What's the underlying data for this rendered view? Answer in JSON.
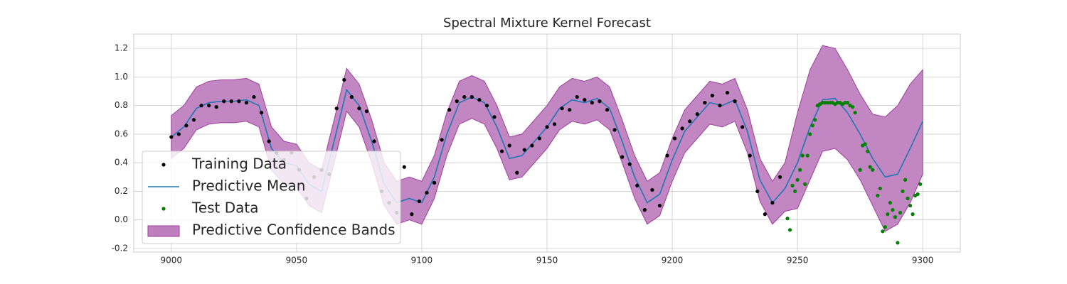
{
  "chart_data": {
    "type": "scatter_line_band",
    "title": "Spectral Mixture Kernel Forecast",
    "xlim": [
      8985,
      9315
    ],
    "ylim": [
      -0.225,
      1.3
    ],
    "xticks": [
      9000,
      9050,
      9100,
      9150,
      9200,
      9250,
      9300
    ],
    "yticks": [
      -0.2,
      {
        "value": 0,
        "label": "0.0"
      },
      0.2,
      0.4,
      0.6,
      0.8,
      {
        "value": 1,
        "label": "1.0"
      },
      1.2
    ],
    "grid": true,
    "legend": "lower left",
    "series": [
      {
        "name": "Training Data",
        "kind": "points",
        "color": "#000000",
        "x": [
          9000,
          9003,
          9006,
          9009,
          9012,
          9015,
          9018,
          9021,
          9024,
          9027,
          9030,
          9033,
          9036,
          9039,
          9042,
          9045,
          9048,
          9051,
          9054,
          9057,
          9060,
          9063,
          9066,
          9069,
          9072,
          9075,
          9078,
          9081,
          9084,
          9087,
          9090,
          9093,
          9096,
          9099,
          9102,
          9105,
          9108,
          9111,
          9114,
          9117,
          9120,
          9123,
          9126,
          9129,
          9132,
          9135,
          9138,
          9141,
          9144,
          9147,
          9150,
          9153,
          9156,
          9159,
          9162,
          9165,
          9168,
          9171,
          9174,
          9177,
          9180,
          9183,
          9186,
          9189,
          9192,
          9195,
          9198,
          9201,
          9204,
          9207,
          9210,
          9213,
          9216,
          9219,
          9222,
          9225,
          9228,
          9231,
          9234,
          9237,
          9240,
          9243
        ],
        "values": [
          0.58,
          0.6,
          0.66,
          0.7,
          0.8,
          0.8,
          0.79,
          0.83,
          0.83,
          0.83,
          0.82,
          0.86,
          0.75,
          0.55,
          0.47,
          0.42,
          0.47,
          0.35,
          0.15,
          0.3,
          0.35,
          0.32,
          0.78,
          0.98,
          0.86,
          0.78,
          0.76,
          0.55,
          0.2,
          0.12,
          0.05,
          0.37,
          0.04,
          0.13,
          0.19,
          0.26,
          0.56,
          0.77,
          0.83,
          0.86,
          0.86,
          0.84,
          0.8,
          0.72,
          0.48,
          0.52,
          0.33,
          0.49,
          0.52,
          0.57,
          0.65,
          0.67,
          0.78,
          0.77,
          0.86,
          0.84,
          0.82,
          0.83,
          0.77,
          0.63,
          0.44,
          0.39,
          0.24,
          0.07,
          0.21,
          0.1,
          0.45,
          0.57,
          0.64,
          0.69,
          0.74,
          0.82,
          0.87,
          0.8,
          0.89,
          0.83,
          0.65,
          0.45,
          0.2,
          0.04,
          0.12,
          0.3
        ]
      },
      {
        "name": "Predictive Mean",
        "kind": "line",
        "color": "#1f77b4",
        "x": [
          9000,
          9005,
          9010,
          9015,
          9020,
          9025,
          9030,
          9035,
          9040,
          9045,
          9050,
          9055,
          9060,
          9065,
          9070,
          9075,
          9080,
          9085,
          9090,
          9095,
          9100,
          9105,
          9110,
          9115,
          9120,
          9125,
          9130,
          9135,
          9140,
          9145,
          9150,
          9155,
          9160,
          9165,
          9170,
          9175,
          9180,
          9185,
          9190,
          9195,
          9200,
          9205,
          9210,
          9215,
          9220,
          9225,
          9230,
          9235,
          9240,
          9245,
          9250,
          9255,
          9260,
          9265,
          9270,
          9275,
          9280,
          9285,
          9290,
          9295,
          9300
        ],
        "values": [
          0.58,
          0.65,
          0.78,
          0.82,
          0.83,
          0.83,
          0.84,
          0.8,
          0.5,
          0.4,
          0.38,
          0.25,
          0.2,
          0.55,
          0.91,
          0.8,
          0.55,
          0.25,
          0.12,
          0.15,
          0.12,
          0.3,
          0.6,
          0.82,
          0.86,
          0.82,
          0.65,
          0.43,
          0.45,
          0.55,
          0.65,
          0.78,
          0.84,
          0.82,
          0.85,
          0.78,
          0.55,
          0.3,
          0.12,
          0.18,
          0.42,
          0.62,
          0.72,
          0.82,
          0.8,
          0.84,
          0.62,
          0.28,
          0.12,
          0.22,
          0.4,
          0.65,
          0.84,
          0.85,
          0.75,
          0.6,
          0.43,
          0.3,
          0.32,
          0.5,
          0.69
        ]
      },
      {
        "name": "Test Data",
        "kind": "points",
        "color": "#008000",
        "x": [
          9246,
          9247,
          9248,
          9249,
          9250,
          9251,
          9252,
          9253,
          9254,
          9255,
          9256,
          9257,
          9258,
          9259,
          9260,
          9261,
          9262,
          9263,
          9264,
          9265,
          9266,
          9267,
          9268,
          9269,
          9270,
          9271,
          9272,
          9273,
          9275,
          9276,
          9277,
          9278,
          9279,
          9280,
          9282,
          9283,
          9284,
          9285,
          9286,
          9287,
          9288,
          9289,
          9290,
          9291,
          9292,
          9293,
          9294,
          9295,
          9296,
          9297,
          9298,
          9299
        ],
        "values": [
          0.01,
          -0.07,
          0.24,
          0.2,
          0.28,
          0.35,
          0.45,
          0.25,
          0.45,
          0.6,
          0.66,
          0.7,
          0.8,
          0.81,
          0.82,
          0.82,
          0.82,
          0.82,
          0.82,
          0.81,
          0.82,
          0.82,
          0.81,
          0.82,
          0.82,
          0.8,
          0.79,
          0.75,
          0.35,
          0.52,
          0.53,
          0.48,
          0.37,
          0.35,
          0.17,
          0.22,
          -0.08,
          -0.05,
          0.04,
          0.12,
          0.07,
          0.02,
          -0.16,
          0.05,
          0.2,
          0.28,
          0.15,
          0.1,
          0.04,
          0.17,
          0.18,
          0.25
        ]
      },
      {
        "name": "Predictive Confidence Bands",
        "kind": "band",
        "color": "#bf7fbf",
        "edge_color": "#9b3f9b",
        "x": [
          9000,
          9005,
          9010,
          9015,
          9020,
          9025,
          9030,
          9035,
          9040,
          9045,
          9050,
          9055,
          9060,
          9065,
          9070,
          9075,
          9080,
          9085,
          9090,
          9095,
          9100,
          9105,
          9110,
          9115,
          9120,
          9125,
          9130,
          9135,
          9140,
          9145,
          9150,
          9155,
          9160,
          9165,
          9170,
          9175,
          9180,
          9185,
          9190,
          9195,
          9200,
          9205,
          9210,
          9215,
          9220,
          9225,
          9230,
          9235,
          9240,
          9245,
          9250,
          9255,
          9260,
          9265,
          9270,
          9275,
          9280,
          9285,
          9290,
          9295,
          9300
        ],
        "upper": [
          0.73,
          0.8,
          0.93,
          0.97,
          0.98,
          0.98,
          0.99,
          0.95,
          0.65,
          0.55,
          0.53,
          0.4,
          0.35,
          0.7,
          1.06,
          0.95,
          0.7,
          0.4,
          0.27,
          0.3,
          0.27,
          0.45,
          0.75,
          0.97,
          1.01,
          0.97,
          0.8,
          0.58,
          0.6,
          0.7,
          0.8,
          0.93,
          0.99,
          0.97,
          1.0,
          0.93,
          0.7,
          0.45,
          0.27,
          0.33,
          0.57,
          0.77,
          0.87,
          0.97,
          0.95,
          0.99,
          0.77,
          0.43,
          0.27,
          0.4,
          0.75,
          1.05,
          1.22,
          1.2,
          1.05,
          0.88,
          0.74,
          0.72,
          0.8,
          0.95,
          1.05
        ],
        "lower": [
          0.43,
          0.5,
          0.63,
          0.67,
          0.68,
          0.68,
          0.69,
          0.65,
          0.35,
          0.25,
          0.23,
          0.1,
          0.05,
          0.4,
          0.76,
          0.65,
          0.4,
          0.1,
          -0.03,
          0,
          -0.03,
          0.15,
          0.45,
          0.67,
          0.71,
          0.67,
          0.5,
          0.28,
          0.3,
          0.4,
          0.5,
          0.63,
          0.69,
          0.67,
          0.7,
          0.63,
          0.4,
          0.15,
          -0.03,
          0.03,
          0.27,
          0.47,
          0.57,
          0.67,
          0.65,
          0.69,
          0.47,
          0.13,
          -0.03,
          0.06,
          0.08,
          0.28,
          0.48,
          0.5,
          0.42,
          0.28,
          0.1,
          -0.08,
          -0.03,
          0.12,
          0.32
        ]
      }
    ]
  }
}
